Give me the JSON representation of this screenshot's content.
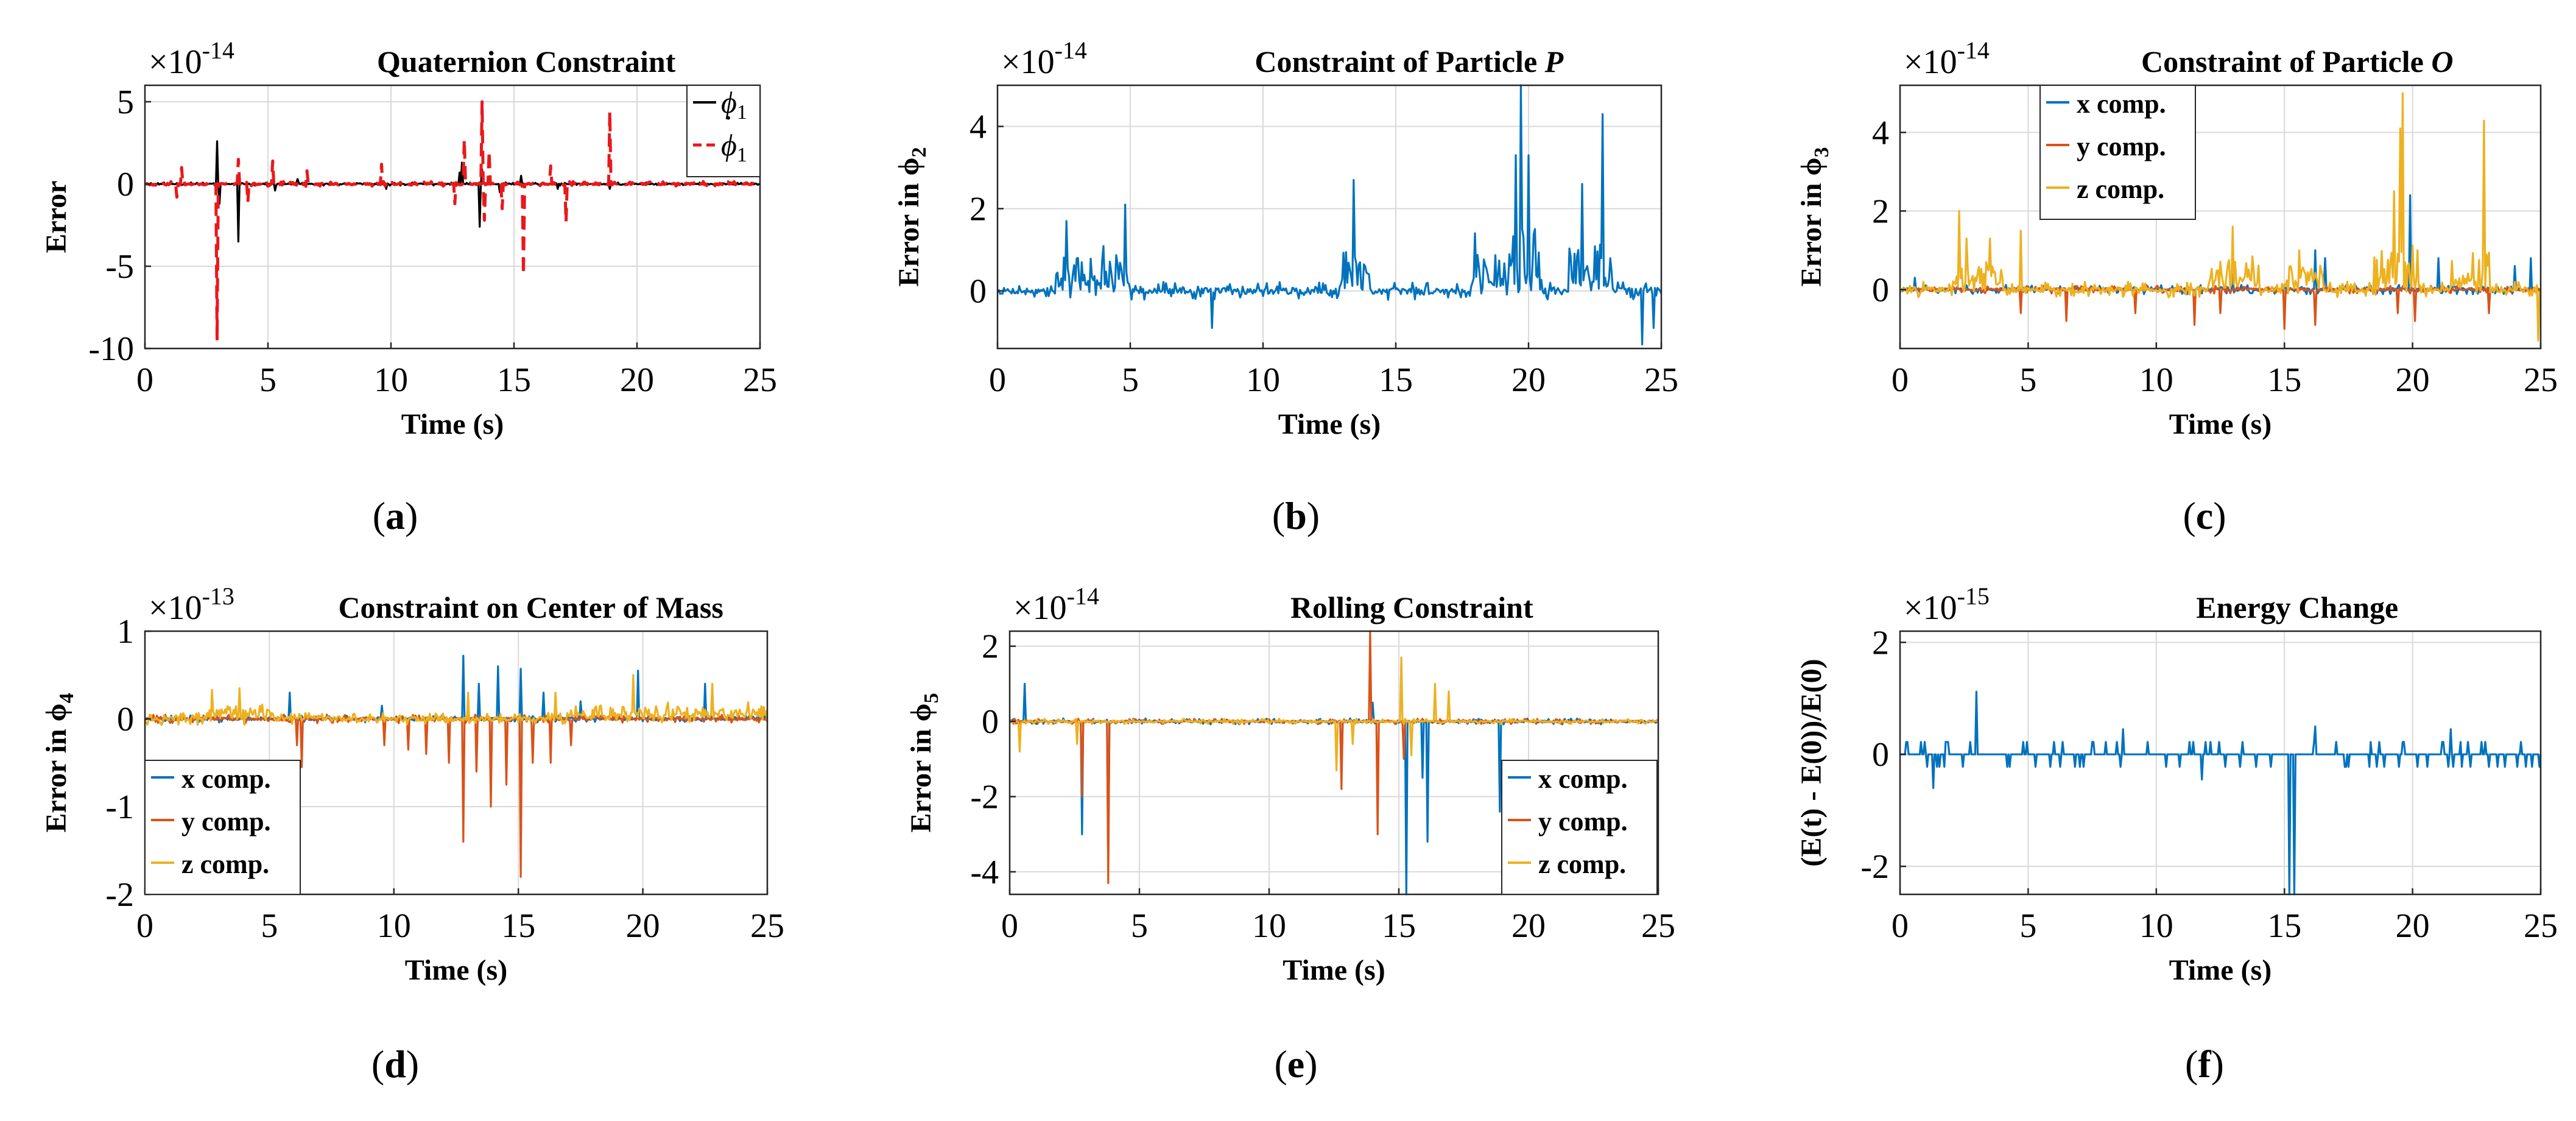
{
  "figure": {
    "panels": [
      {
        "caption_open": "(",
        "caption_letter": "a",
        "caption_close": ")"
      },
      {
        "caption_open": "(",
        "caption_letter": "b",
        "caption_close": ")"
      },
      {
        "caption_open": "(",
        "caption_letter": "c",
        "caption_close": ")"
      },
      {
        "caption_open": "(",
        "caption_letter": "d",
        "caption_close": ")"
      },
      {
        "caption_open": "(",
        "caption_letter": "e",
        "caption_close": ")"
      },
      {
        "caption_open": "(",
        "caption_letter": "f",
        "caption_close": ")"
      }
    ]
  },
  "chart_data": [
    {
      "type": "line",
      "title": "Quaternion Constraint",
      "multiplier": "×10",
      "multiplier_exp": "-14",
      "xlabel": "Time (s)",
      "ylabel": "Error",
      "xlim": [
        0,
        25
      ],
      "ylim": [
        -10,
        6
      ],
      "xticks": [
        0,
        5,
        10,
        15,
        20,
        25
      ],
      "yticks": [
        -10,
        -5,
        0,
        5
      ],
      "legend_position": "top-right",
      "series": [
        {
          "name": "ϕ₁",
          "label_base": "ϕ",
          "label_sub": "1",
          "dotted": false,
          "color": "#000000",
          "dash": false,
          "baseline": 0.0,
          "noise": 0.1,
          "seed": 11,
          "spikes": [
            [
              2.95,
              2.6
            ],
            [
              3.05,
              -1.2
            ],
            [
              3.8,
              -3.5
            ],
            [
              5.3,
              -0.4
            ],
            [
              6.2,
              0.3
            ],
            [
              9.8,
              -0.3
            ],
            [
              12.8,
              0.7
            ],
            [
              12.9,
              1.3
            ],
            [
              13.6,
              -2.6
            ],
            [
              13.7,
              0.9
            ],
            [
              14.4,
              -0.5
            ],
            [
              15.3,
              0.5
            ],
            [
              16.8,
              -0.3
            ],
            [
              18.9,
              -0.3
            ]
          ]
        },
        {
          "name": "ϕ̇₁",
          "label_base": "ϕ",
          "label_sub": "1",
          "dotted": true,
          "color": "#e8191b",
          "dash": true,
          "baseline": 0.0,
          "noise": 0.15,
          "seed": 23,
          "spikes": [
            [
              1.3,
              -0.8
            ],
            [
              1.5,
              1.0
            ],
            [
              2.95,
              -9.5
            ],
            [
              3.8,
              1.5
            ],
            [
              4.2,
              -1.1
            ],
            [
              5.2,
              1.4
            ],
            [
              6.6,
              0.8
            ],
            [
              9.6,
              1.2
            ],
            [
              12.6,
              -1.2
            ],
            [
              13.0,
              2.7
            ],
            [
              13.7,
              5.0
            ],
            [
              13.8,
              -2.2
            ],
            [
              14.0,
              2.0
            ],
            [
              14.5,
              -1.5
            ],
            [
              15.4,
              -5.5
            ],
            [
              16.5,
              1.1
            ],
            [
              17.1,
              -2.3
            ],
            [
              18.9,
              4.4
            ]
          ]
        }
      ]
    },
    {
      "type": "line",
      "title": "Constraint of Particle ",
      "title_italic": "P",
      "multiplier": "×10",
      "multiplier_exp": "-14",
      "xlabel": "Time (s)",
      "ylabel": "Error in ϕ",
      "ylabel_base": "Error in ϕ",
      "ylabel_sub": "2",
      "xlim": [
        0,
        25
      ],
      "ylim": [
        -1.4,
        5.0
      ],
      "xticks": [
        0,
        5,
        10,
        15,
        20,
        25
      ],
      "yticks": [
        0,
        2,
        4
      ],
      "series": [
        {
          "name": "error",
          "color": "#0072bd",
          "dash": false,
          "baseline": 0.0,
          "noise": 0.22,
          "seed": 7,
          "bursts": [
            [
              2.2,
              5.0,
              0.9
            ],
            [
              12.8,
              14.0,
              1.0
            ],
            [
              17.8,
              19.2,
              0.9
            ],
            [
              19.2,
              20.5,
              1.6
            ],
            [
              21.5,
              23.2,
              1.1
            ]
          ],
          "spikes": [
            [
              2.6,
              1.7
            ],
            [
              4.8,
              2.1
            ],
            [
              8.1,
              -0.9
            ],
            [
              13.4,
              2.7
            ],
            [
              18.0,
              1.4
            ],
            [
              19.5,
              3.3
            ],
            [
              19.7,
              5.0
            ],
            [
              20.0,
              3.3
            ],
            [
              22.0,
              2.6
            ],
            [
              22.8,
              4.3
            ],
            [
              24.3,
              -1.3
            ],
            [
              24.7,
              -0.9
            ]
          ]
        }
      ]
    },
    {
      "type": "line",
      "title": "Constraint of Particle ",
      "title_italic": "O",
      "multiplier": "×10",
      "multiplier_exp": "-14",
      "xlabel": "Time (s)",
      "ylabel": "Error in ϕ",
      "ylabel_base": "Error in ϕ",
      "ylabel_sub": "3",
      "xlim": [
        0,
        25
      ],
      "ylim": [
        -1.5,
        5.2
      ],
      "xticks": [
        0,
        5,
        10,
        15,
        20,
        25
      ],
      "yticks": [
        0,
        2,
        4
      ],
      "legend_position": "top-left",
      "series": [
        {
          "name": "x comp.",
          "color": "#0072bd",
          "dash": false,
          "baseline": 0.0,
          "noise": 0.12,
          "seed": 31,
          "spikes": [
            [
              0.6,
              0.3
            ],
            [
              13.0,
              0.4
            ],
            [
              16.2,
              1.0
            ],
            [
              16.6,
              0.8
            ],
            [
              19.9,
              2.4
            ],
            [
              21.0,
              0.8
            ],
            [
              24.0,
              0.6
            ],
            [
              24.6,
              0.8
            ]
          ]
        },
        {
          "name": "y comp.",
          "color": "#d95319",
          "dash": false,
          "baseline": 0.0,
          "noise": 0.1,
          "seed": 47,
          "spikes": [
            [
              4.7,
              -0.6
            ],
            [
              6.5,
              -0.8
            ],
            [
              9.2,
              -0.6
            ],
            [
              11.5,
              -0.9
            ],
            [
              12.5,
              -0.6
            ],
            [
              15.0,
              -1.0
            ],
            [
              16.2,
              -0.9
            ],
            [
              19.4,
              -0.6
            ],
            [
              20.1,
              -0.8
            ],
            [
              23.0,
              -0.6
            ]
          ]
        },
        {
          "name": "z comp.",
          "color": "#edb120",
          "dash": false,
          "baseline": 0.0,
          "noise": 0.2,
          "seed": 59,
          "bursts": [
            [
              2.0,
              4.0,
              0.8
            ],
            [
              12.0,
              14.0,
              0.9
            ],
            [
              15.0,
              16.5,
              0.6
            ],
            [
              18.5,
              20.2,
              1.2
            ],
            [
              21.5,
              23.0,
              0.9
            ]
          ],
          "spikes": [
            [
              2.3,
              2.0
            ],
            [
              2.6,
              1.3
            ],
            [
              3.5,
              1.3
            ],
            [
              4.7,
              1.5
            ],
            [
              13.0,
              1.6
            ],
            [
              15.6,
              1.0
            ],
            [
              19.3,
              2.5
            ],
            [
              19.5,
              4.1
            ],
            [
              19.6,
              5.0
            ],
            [
              22.8,
              4.3
            ],
            [
              24.9,
              -1.3
            ]
          ]
        }
      ]
    },
    {
      "type": "line",
      "title": "Constraint on Center of Mass",
      "multiplier": "×10",
      "multiplier_exp": "-13",
      "xlabel": "Time (s)",
      "ylabel": "Error in ϕ",
      "ylabel_base": "Error in ϕ",
      "ylabel_sub": "4",
      "xlim": [
        0,
        25
      ],
      "ylim": [
        -2,
        1
      ],
      "xticks": [
        0,
        5,
        10,
        15,
        20,
        25
      ],
      "yticks": [
        -2,
        -1,
        0,
        1
      ],
      "legend_position": "bottom-left",
      "series": [
        {
          "name": "x comp.",
          "color": "#0072bd",
          "dash": false,
          "baseline": 0.0,
          "noise": 0.04,
          "seed": 71,
          "spikes": [
            [
              5.8,
              0.3
            ],
            [
              9.5,
              0.15
            ],
            [
              12.8,
              0.72
            ],
            [
              13.4,
              0.4
            ],
            [
              14.2,
              0.6
            ],
            [
              15.1,
              0.57
            ],
            [
              16.0,
              0.3
            ],
            [
              17.5,
              0.2
            ],
            [
              19.8,
              0.55
            ],
            [
              22.5,
              0.4
            ]
          ]
        },
        {
          "name": "y comp.",
          "color": "#d95319",
          "dash": false,
          "baseline": 0.0,
          "noise": 0.05,
          "seed": 83,
          "spikes": [
            [
              6.1,
              -0.3
            ],
            [
              6.3,
              -0.55
            ],
            [
              9.6,
              -0.3
            ],
            [
              10.6,
              -0.35
            ],
            [
              11.3,
              -0.4
            ],
            [
              12.2,
              -0.5
            ],
            [
              12.8,
              -1.4
            ],
            [
              13.3,
              -0.6
            ],
            [
              13.9,
              -1.0
            ],
            [
              14.5,
              -0.75
            ],
            [
              15.1,
              -1.8
            ],
            [
              15.6,
              -0.5
            ],
            [
              16.3,
              -0.5
            ],
            [
              17.1,
              -0.3
            ]
          ]
        },
        {
          "name": "z comp.",
          "color": "#edb120",
          "dash": false,
          "baseline": 0.0,
          "noise": 0.07,
          "seed": 97,
          "bursts": [
            [
              2.5,
              5.0,
              0.15
            ],
            [
              17.0,
              25.0,
              0.14
            ]
          ],
          "spikes": [
            [
              2.7,
              0.33
            ],
            [
              3.8,
              0.35
            ],
            [
              13.0,
              0.3
            ],
            [
              16.5,
              0.3
            ],
            [
              19.6,
              0.5
            ],
            [
              22.8,
              0.4
            ]
          ]
        }
      ]
    },
    {
      "type": "line",
      "title": "Rolling Constraint",
      "multiplier": "×10",
      "multiplier_exp": "-14",
      "xlabel": "Time (s)",
      "ylabel": "Error in ϕ",
      "ylabel_base": "Error in ϕ",
      "ylabel_sub": "5",
      "xlim": [
        0,
        25
      ],
      "ylim": [
        -4.6,
        2.4
      ],
      "xticks": [
        0,
        5,
        10,
        15,
        20,
        25
      ],
      "yticks": [
        -4,
        -2,
        0,
        2
      ],
      "legend_position": "bottom-right",
      "series": [
        {
          "name": "x comp.",
          "color": "#0072bd",
          "dash": false,
          "baseline": 0.0,
          "noise": 0.08,
          "seed": 101,
          "spikes": [
            [
              0.6,
              1.0
            ],
            [
              2.8,
              -3.0
            ],
            [
              3.8,
              -3.8
            ],
            [
              12.8,
              -1.5
            ],
            [
              15.3,
              -4.6
            ],
            [
              15.9,
              -1.5
            ],
            [
              16.1,
              -3.2
            ],
            [
              18.9,
              -2.4
            ],
            [
              14.0,
              0.5
            ]
          ]
        },
        {
          "name": "y comp.",
          "color": "#d95319",
          "dash": false,
          "baseline": 0.0,
          "noise": 0.07,
          "seed": 113,
          "spikes": [
            [
              2.8,
              -2.0
            ],
            [
              3.8,
              -4.3
            ],
            [
              12.8,
              -1.8
            ],
            [
              13.9,
              2.4
            ],
            [
              14.2,
              -3.0
            ],
            [
              15.2,
              -1.0
            ]
          ]
        },
        {
          "name": "z comp.",
          "color": "#edb120",
          "dash": false,
          "baseline": 0.0,
          "noise": 0.07,
          "seed": 127,
          "spikes": [
            [
              0.4,
              -0.8
            ],
            [
              2.6,
              -0.6
            ],
            [
              12.6,
              -1.3
            ],
            [
              13.2,
              -0.6
            ],
            [
              15.1,
              1.7
            ],
            [
              15.5,
              -0.9
            ],
            [
              16.4,
              1.0
            ],
            [
              16.9,
              0.8
            ]
          ]
        }
      ]
    },
    {
      "type": "line",
      "title": "Energy Change",
      "multiplier": "×10",
      "multiplier_exp": "-15",
      "xlabel": "Time (s)",
      "ylabel": "(E(t) - E(0))/E(0)",
      "xlim": [
        0,
        25
      ],
      "ylim": [
        -2.5,
        2.2
      ],
      "xticks": [
        0,
        5,
        10,
        15,
        20,
        25
      ],
      "yticks": [
        -2,
        0,
        2
      ],
      "series": [
        {
          "name": "energy",
          "color": "#0072bd",
          "dash": false,
          "baseline": 0.0,
          "noise": 0.0,
          "seed": 137,
          "quantum": 0.222,
          "quantum_prob": 0.16,
          "spikes": [
            [
              3.0,
              1.12
            ],
            [
              1.3,
              -0.6
            ],
            [
              15.2,
              -2.5
            ],
            [
              15.4,
              -2.5
            ],
            [
              16.2,
              0.5
            ],
            [
              8.7,
              0.45
            ],
            [
              21.5,
              0.45
            ],
            [
              11.8,
              -0.45
            ]
          ]
        }
      ]
    }
  ]
}
